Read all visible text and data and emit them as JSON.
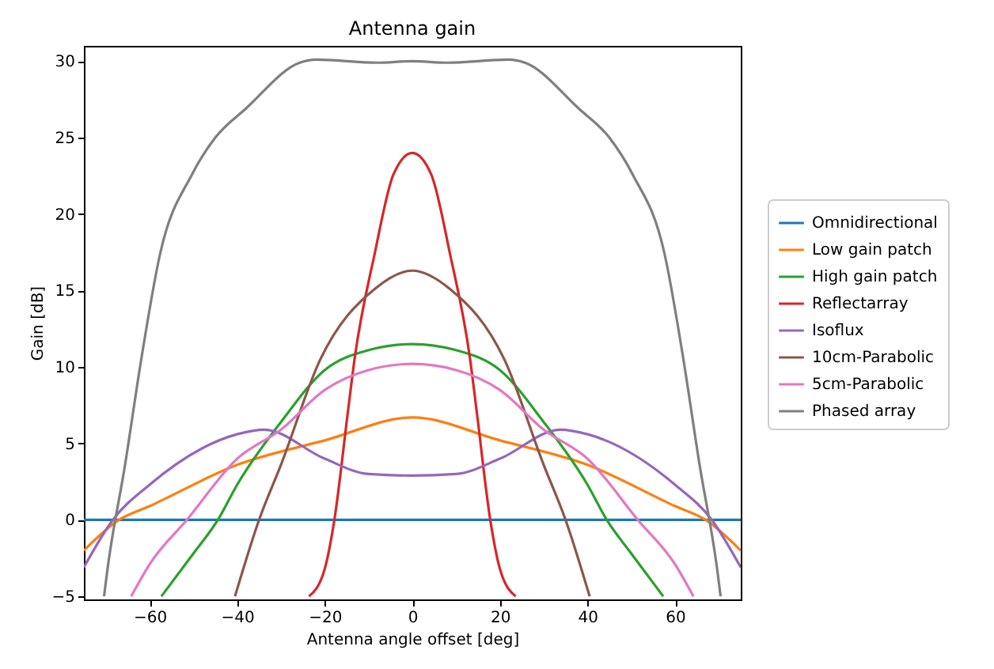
{
  "chart_data": {
    "type": "line",
    "title": "Antenna gain",
    "xlabel": "Antenna angle offset [deg]",
    "ylabel": "Gain [dB]",
    "xlim": [
      -75,
      75
    ],
    "ylim": [
      -5.2,
      31
    ],
    "xticks": [
      -60,
      -40,
      -20,
      0,
      20,
      40,
      60
    ],
    "yticks": [
      -5,
      0,
      5,
      10,
      15,
      20,
      25,
      30
    ],
    "grid": false,
    "legend": "right",
    "line_style": "solid",
    "marker": "none",
    "series": [
      {
        "name": "Omnidirectional",
        "color": "#1f77b4",
        "x": [
          -75,
          75
        ],
        "values": [
          0,
          0
        ]
      },
      {
        "name": "Low gain patch",
        "color": "#ff7f0e",
        "x": [
          -75,
          -67,
          -60,
          -40,
          -20,
          0,
          20,
          40,
          60,
          67,
          75
        ],
        "values": [
          -2.0,
          0,
          0.9,
          3.6,
          5.2,
          6.7,
          5.2,
          3.6,
          0.9,
          0,
          -2.0
        ]
      },
      {
        "name": "High gain patch",
        "color": "#2ca02c",
        "x": [
          -57.3,
          -50,
          -44.4,
          -40,
          -30,
          -20,
          -10,
          0,
          10,
          20,
          30,
          40,
          44.4,
          50,
          57.3
        ],
        "values": [
          -5,
          -2.2,
          0,
          2.3,
          6.4,
          9.8,
          11.1,
          11.5,
          11.1,
          9.8,
          6.4,
          2.3,
          0,
          -2.2,
          -5
        ]
      },
      {
        "name": "Reflectarray",
        "color": "#d62728",
        "x": [
          -23.6,
          -20,
          -17.8,
          -14.7,
          -13.2,
          -8.6,
          -4.3,
          0,
          4.3,
          8.6,
          13.2,
          14.7,
          17.8,
          20,
          23.6
        ],
        "values": [
          -5,
          -3.2,
          0,
          7.1,
          10.5,
          17.4,
          22.6,
          24.0,
          22.6,
          17.4,
          10.5,
          7.1,
          0,
          -3.2,
          -5
        ]
      },
      {
        "name": "Isoflux",
        "color": "#9467bd",
        "x": [
          -75,
          -68.4,
          -60,
          -40,
          -33.8,
          -20,
          -10,
          0,
          10,
          20,
          33.8,
          40,
          60,
          68.4,
          75
        ],
        "values": [
          -3.1,
          0,
          2.3,
          5.6,
          5.9,
          4.0,
          3.0,
          2.9,
          3.0,
          4.0,
          5.9,
          5.6,
          2.3,
          0,
          -3.1
        ]
      },
      {
        "name": "10cm-Parabolic",
        "color": "#8c564b",
        "x": [
          -40.5,
          -35,
          -30,
          -21,
          -8.6,
          0,
          8.6,
          21,
          30,
          35,
          40.5
        ],
        "values": [
          -5,
          0,
          3.6,
          10.5,
          15.1,
          16.3,
          15.1,
          10.5,
          3.6,
          0,
          -5
        ]
      },
      {
        "name": "5cm-Parabolic",
        "color": "#e377c2",
        "x": [
          -64.2,
          -60,
          -51.5,
          -40,
          -30,
          -20,
          -10,
          0,
          10,
          20,
          30,
          40,
          51.5,
          60,
          64.2
        ],
        "values": [
          -5,
          -2.9,
          0,
          4.0,
          5.9,
          8.5,
          9.8,
          10.2,
          9.8,
          8.5,
          5.9,
          4.0,
          0,
          -2.9,
          -5
        ]
      },
      {
        "name": "Phased array",
        "color": "#7f7f7f",
        "x": [
          -70.4,
          -69.6,
          -65.6,
          -61.9,
          -57.6,
          -50.3,
          -45,
          -38,
          -25.7,
          -22,
          -8,
          0,
          8,
          22,
          25.7,
          38,
          45,
          50.3,
          57.6,
          61.9,
          65.6,
          69.6,
          70.4
        ],
        "values": [
          -5,
          -3.2,
          3.6,
          10.5,
          17.4,
          22.6,
          25.0,
          26.9,
          29.9,
          30.1,
          29.9,
          30.0,
          29.9,
          30.1,
          29.9,
          26.9,
          25.0,
          22.6,
          17.4,
          10.5,
          3.6,
          -3.2,
          -5
        ]
      }
    ]
  }
}
